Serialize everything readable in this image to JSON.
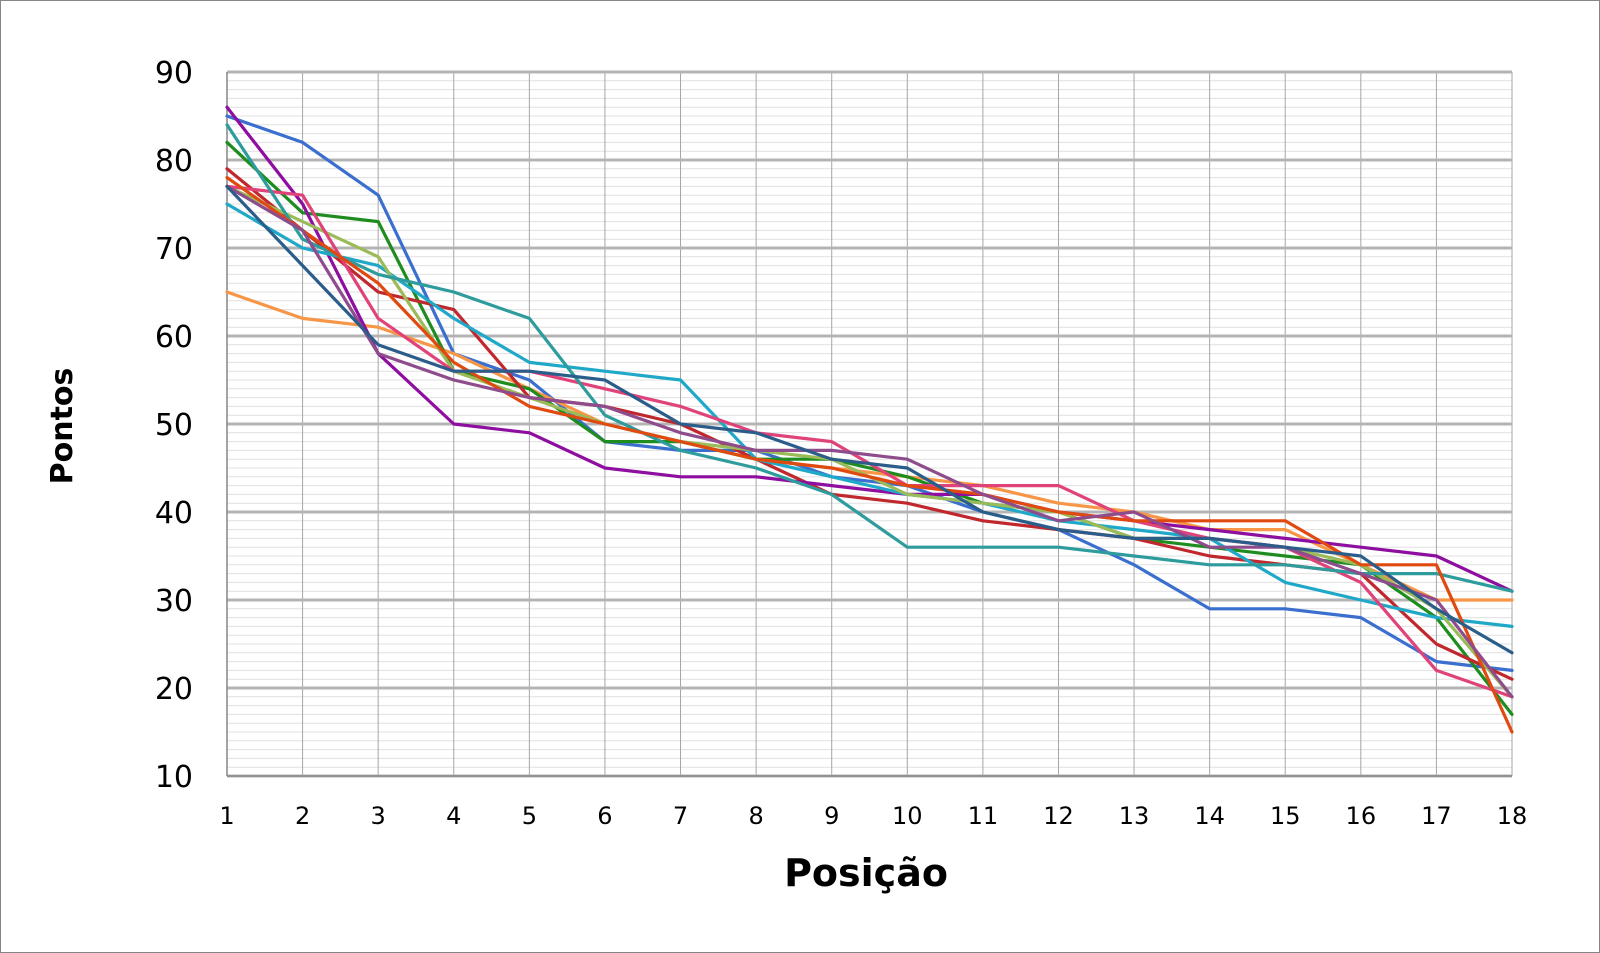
{
  "chart_data": {
    "type": "line",
    "title": "",
    "xlabel": "Posição",
    "ylabel": "Pontos",
    "x": [
      1,
      2,
      3,
      4,
      5,
      6,
      7,
      8,
      9,
      10,
      11,
      12,
      13,
      14,
      15,
      16,
      17,
      18
    ],
    "xlim": [
      1,
      18
    ],
    "ylim": [
      10,
      90
    ],
    "y_major_step": 10,
    "y_minor_step": 1,
    "grid": true,
    "legend": "none",
    "series": [
      {
        "color": "#3A6FCF",
        "values": [
          85,
          82,
          76,
          58,
          55,
          48,
          47,
          47,
          44,
          43,
          40,
          38,
          34,
          29,
          29,
          28,
          23,
          22
        ]
      },
      {
        "color": "#F79646",
        "values": [
          65,
          62,
          61,
          58,
          54,
          50,
          48,
          46,
          45,
          44,
          43,
          41,
          40,
          38,
          38,
          34,
          30,
          30
        ]
      },
      {
        "color": "#1E8C1E",
        "values": [
          82,
          74,
          73,
          56,
          54,
          48,
          48,
          46,
          46,
          44,
          41,
          40,
          37,
          36,
          35,
          34,
          28,
          17
        ]
      },
      {
        "color": "#C0282D",
        "values": [
          79,
          72,
          65,
          63,
          53,
          52,
          50,
          46,
          42,
          41,
          39,
          38,
          37,
          35,
          34,
          33,
          25,
          21
        ]
      },
      {
        "color": "#8E0EA0",
        "values": [
          86,
          75,
          58,
          50,
          49,
          45,
          44,
          44,
          43,
          42,
          42,
          40,
          39,
          38,
          37,
          36,
          35,
          31
        ]
      },
      {
        "color": "#20A8C8",
        "values": [
          75,
          70,
          68,
          62,
          57,
          56,
          55,
          46,
          44,
          42,
          41,
          39,
          38,
          37,
          32,
          30,
          28,
          27
        ]
      },
      {
        "color": "#9BBB59",
        "values": [
          77,
          73,
          69,
          56,
          53,
          50,
          48,
          47,
          46,
          42,
          41,
          40,
          37,
          37,
          36,
          34,
          29,
          19
        ]
      },
      {
        "color": "#E0427A",
        "values": [
          77,
          76,
          62,
          56,
          56,
          54,
          52,
          49,
          48,
          43,
          43,
          43,
          39,
          37,
          36,
          32,
          22,
          19
        ]
      },
      {
        "color": "#2E9C9C",
        "values": [
          84,
          71,
          67,
          65,
          62,
          51,
          47,
          45,
          42,
          36,
          36,
          36,
          35,
          34,
          34,
          33,
          33,
          31
        ]
      },
      {
        "color": "#E04A10",
        "values": [
          78,
          72,
          66,
          57,
          52,
          50,
          48,
          46,
          45,
          43,
          42,
          40,
          39,
          39,
          39,
          34,
          34,
          15
        ]
      },
      {
        "color": "#8E4C8C",
        "values": [
          77,
          72,
          58,
          55,
          53,
          52,
          49,
          47,
          47,
          46,
          42,
          39,
          40,
          36,
          36,
          33,
          30,
          19
        ]
      },
      {
        "color": "#2B5D8A",
        "values": [
          77,
          68,
          59,
          56,
          56,
          55,
          50,
          49,
          46,
          45,
          40,
          38,
          37,
          37,
          36,
          35,
          29,
          24
        ]
      }
    ]
  }
}
